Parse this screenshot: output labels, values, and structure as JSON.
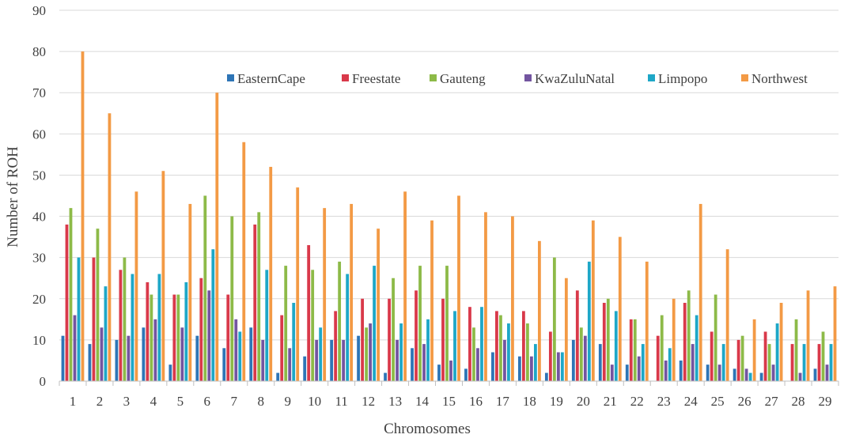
{
  "chart_data": {
    "type": "bar",
    "title": "",
    "xlabel": "Chromosomes",
    "ylabel": "Number of ROH",
    "ylim": [
      0,
      90
    ],
    "yticks": [
      0,
      10,
      20,
      30,
      40,
      50,
      60,
      70,
      80,
      90
    ],
    "grid": true,
    "legend_position": "top-right",
    "categories": [
      "1",
      "2",
      "3",
      "4",
      "5",
      "6",
      "7",
      "8",
      "9",
      "10",
      "11",
      "12",
      "13",
      "14",
      "15",
      "16",
      "17",
      "18",
      "19",
      "20",
      "21",
      "22",
      "23",
      "24",
      "25",
      "26",
      "27",
      "28",
      "29"
    ],
    "series": [
      {
        "name": "EasternCape",
        "color": "#2e75b6",
        "values": [
          11,
          9,
          10,
          13,
          4,
          11,
          8,
          13,
          2,
          6,
          10,
          11,
          2,
          8,
          4,
          3,
          7,
          6,
          2,
          10,
          9,
          4,
          0,
          5,
          4,
          3,
          2,
          0,
          3
        ]
      },
      {
        "name": "Freestate",
        "color": "#d9394a",
        "values": [
          38,
          30,
          27,
          24,
          21,
          25,
          21,
          38,
          16,
          33,
          17,
          20,
          20,
          22,
          20,
          18,
          17,
          17,
          12,
          22,
          19,
          15,
          11,
          19,
          12,
          10,
          12,
          9,
          9
        ]
      },
      {
        "name": "Gauteng",
        "color": "#8dba48",
        "values": [
          42,
          37,
          30,
          21,
          21,
          45,
          40,
          41,
          28,
          27,
          29,
          13,
          25,
          28,
          28,
          13,
          16,
          14,
          30,
          13,
          20,
          15,
          16,
          22,
          21,
          11,
          9,
          15,
          12
        ]
      },
      {
        "name": "KwaZuluNatal",
        "color": "#7355a0",
        "values": [
          16,
          13,
          11,
          15,
          13,
          22,
          15,
          10,
          8,
          10,
          10,
          14,
          10,
          9,
          5,
          8,
          10,
          6,
          7,
          11,
          4,
          6,
          5,
          9,
          4,
          3,
          4,
          2,
          4
        ]
      },
      {
        "name": "Limpopo",
        "color": "#1ea7c7",
        "values": [
          30,
          23,
          26,
          26,
          24,
          32,
          12,
          27,
          19,
          13,
          26,
          28,
          14,
          15,
          17,
          18,
          14,
          9,
          7,
          29,
          17,
          9,
          8,
          16,
          9,
          2,
          14,
          9,
          9
        ]
      },
      {
        "name": "Northwest",
        "color": "#f39a45",
        "values": [
          80,
          65,
          46,
          51,
          43,
          70,
          58,
          52,
          47,
          42,
          43,
          37,
          46,
          39,
          45,
          41,
          40,
          34,
          25,
          39,
          35,
          29,
          20,
          43,
          32,
          15,
          19,
          22,
          23
        ]
      }
    ]
  }
}
